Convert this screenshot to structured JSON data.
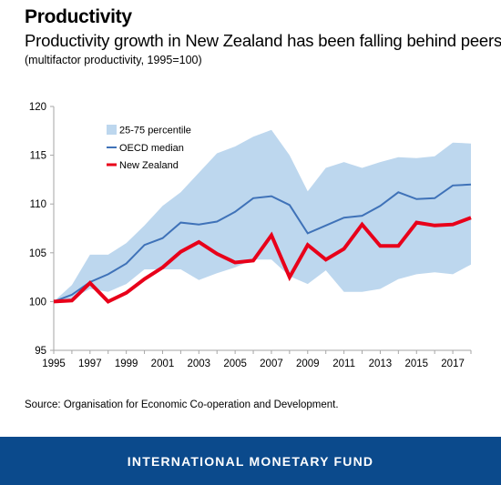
{
  "header": {
    "title": "Productivity",
    "subtitle": "Productivity growth in New Zealand has been falling behind peers.",
    "note": "(multifactor productivity, 1995=100)"
  },
  "source": "Source: Organisation for Economic Co-operation and Development.",
  "footer": {
    "label": "INTERNATIONAL MONETARY FUND"
  },
  "colors": {
    "band": "#bdd7ee",
    "oecd": "#3f72b8",
    "nz": "#e8001a",
    "footer": "#0b4a8c"
  },
  "chart_data": {
    "type": "line",
    "x": [
      1995,
      1996,
      1997,
      1998,
      1999,
      2000,
      2001,
      2002,
      2003,
      2004,
      2005,
      2006,
      2007,
      2008,
      2009,
      2010,
      2011,
      2012,
      2013,
      2014,
      2015,
      2016,
      2017,
      2018
    ],
    "x_tick_labels": [
      "1995",
      "1997",
      "1999",
      "2001",
      "2003",
      "2005",
      "2007",
      "2009",
      "2011",
      "2013",
      "2015",
      "2017"
    ],
    "y_tick_labels": [
      "95",
      "100",
      "105",
      "110",
      "115",
      "120"
    ],
    "ylim": [
      95,
      120
    ],
    "grid": false,
    "legend_position": "top-left",
    "band": {
      "name": "25-75 percentile",
      "upper": [
        100,
        101.7,
        104.8,
        104.8,
        106.0,
        107.8,
        109.8,
        111.2,
        113.2,
        115.2,
        115.9,
        116.9,
        117.6,
        115.0,
        111.3,
        113.7,
        114.3,
        113.7,
        114.3,
        114.8,
        114.7,
        114.9,
        116.3,
        116.2
      ],
      "lower": [
        100,
        100.3,
        101.3,
        101.0,
        101.8,
        103.3,
        103.3,
        103.3,
        102.2,
        102.9,
        103.5,
        104.3,
        104.3,
        102.6,
        101.8,
        103.2,
        101.0,
        101.0,
        101.3,
        102.3,
        102.8,
        103.0,
        102.8,
        103.8
      ]
    },
    "series": [
      {
        "name": "OECD median",
        "values": [
          100,
          100.7,
          102.0,
          102.8,
          103.9,
          105.8,
          106.5,
          108.1,
          107.9,
          108.2,
          109.2,
          110.6,
          110.8,
          109.9,
          107.0,
          107.8,
          108.6,
          108.8,
          109.8,
          111.2,
          110.5,
          110.6,
          111.9,
          112.0
        ]
      },
      {
        "name": "New Zealand",
        "values": [
          100,
          100.1,
          101.9,
          100.0,
          100.9,
          102.3,
          103.5,
          105.1,
          106.1,
          104.9,
          104.0,
          104.2,
          106.8,
          102.5,
          105.8,
          104.3,
          105.4,
          107.9,
          105.7,
          105.7,
          108.1,
          107.8,
          107.9,
          108.6
        ]
      }
    ]
  }
}
